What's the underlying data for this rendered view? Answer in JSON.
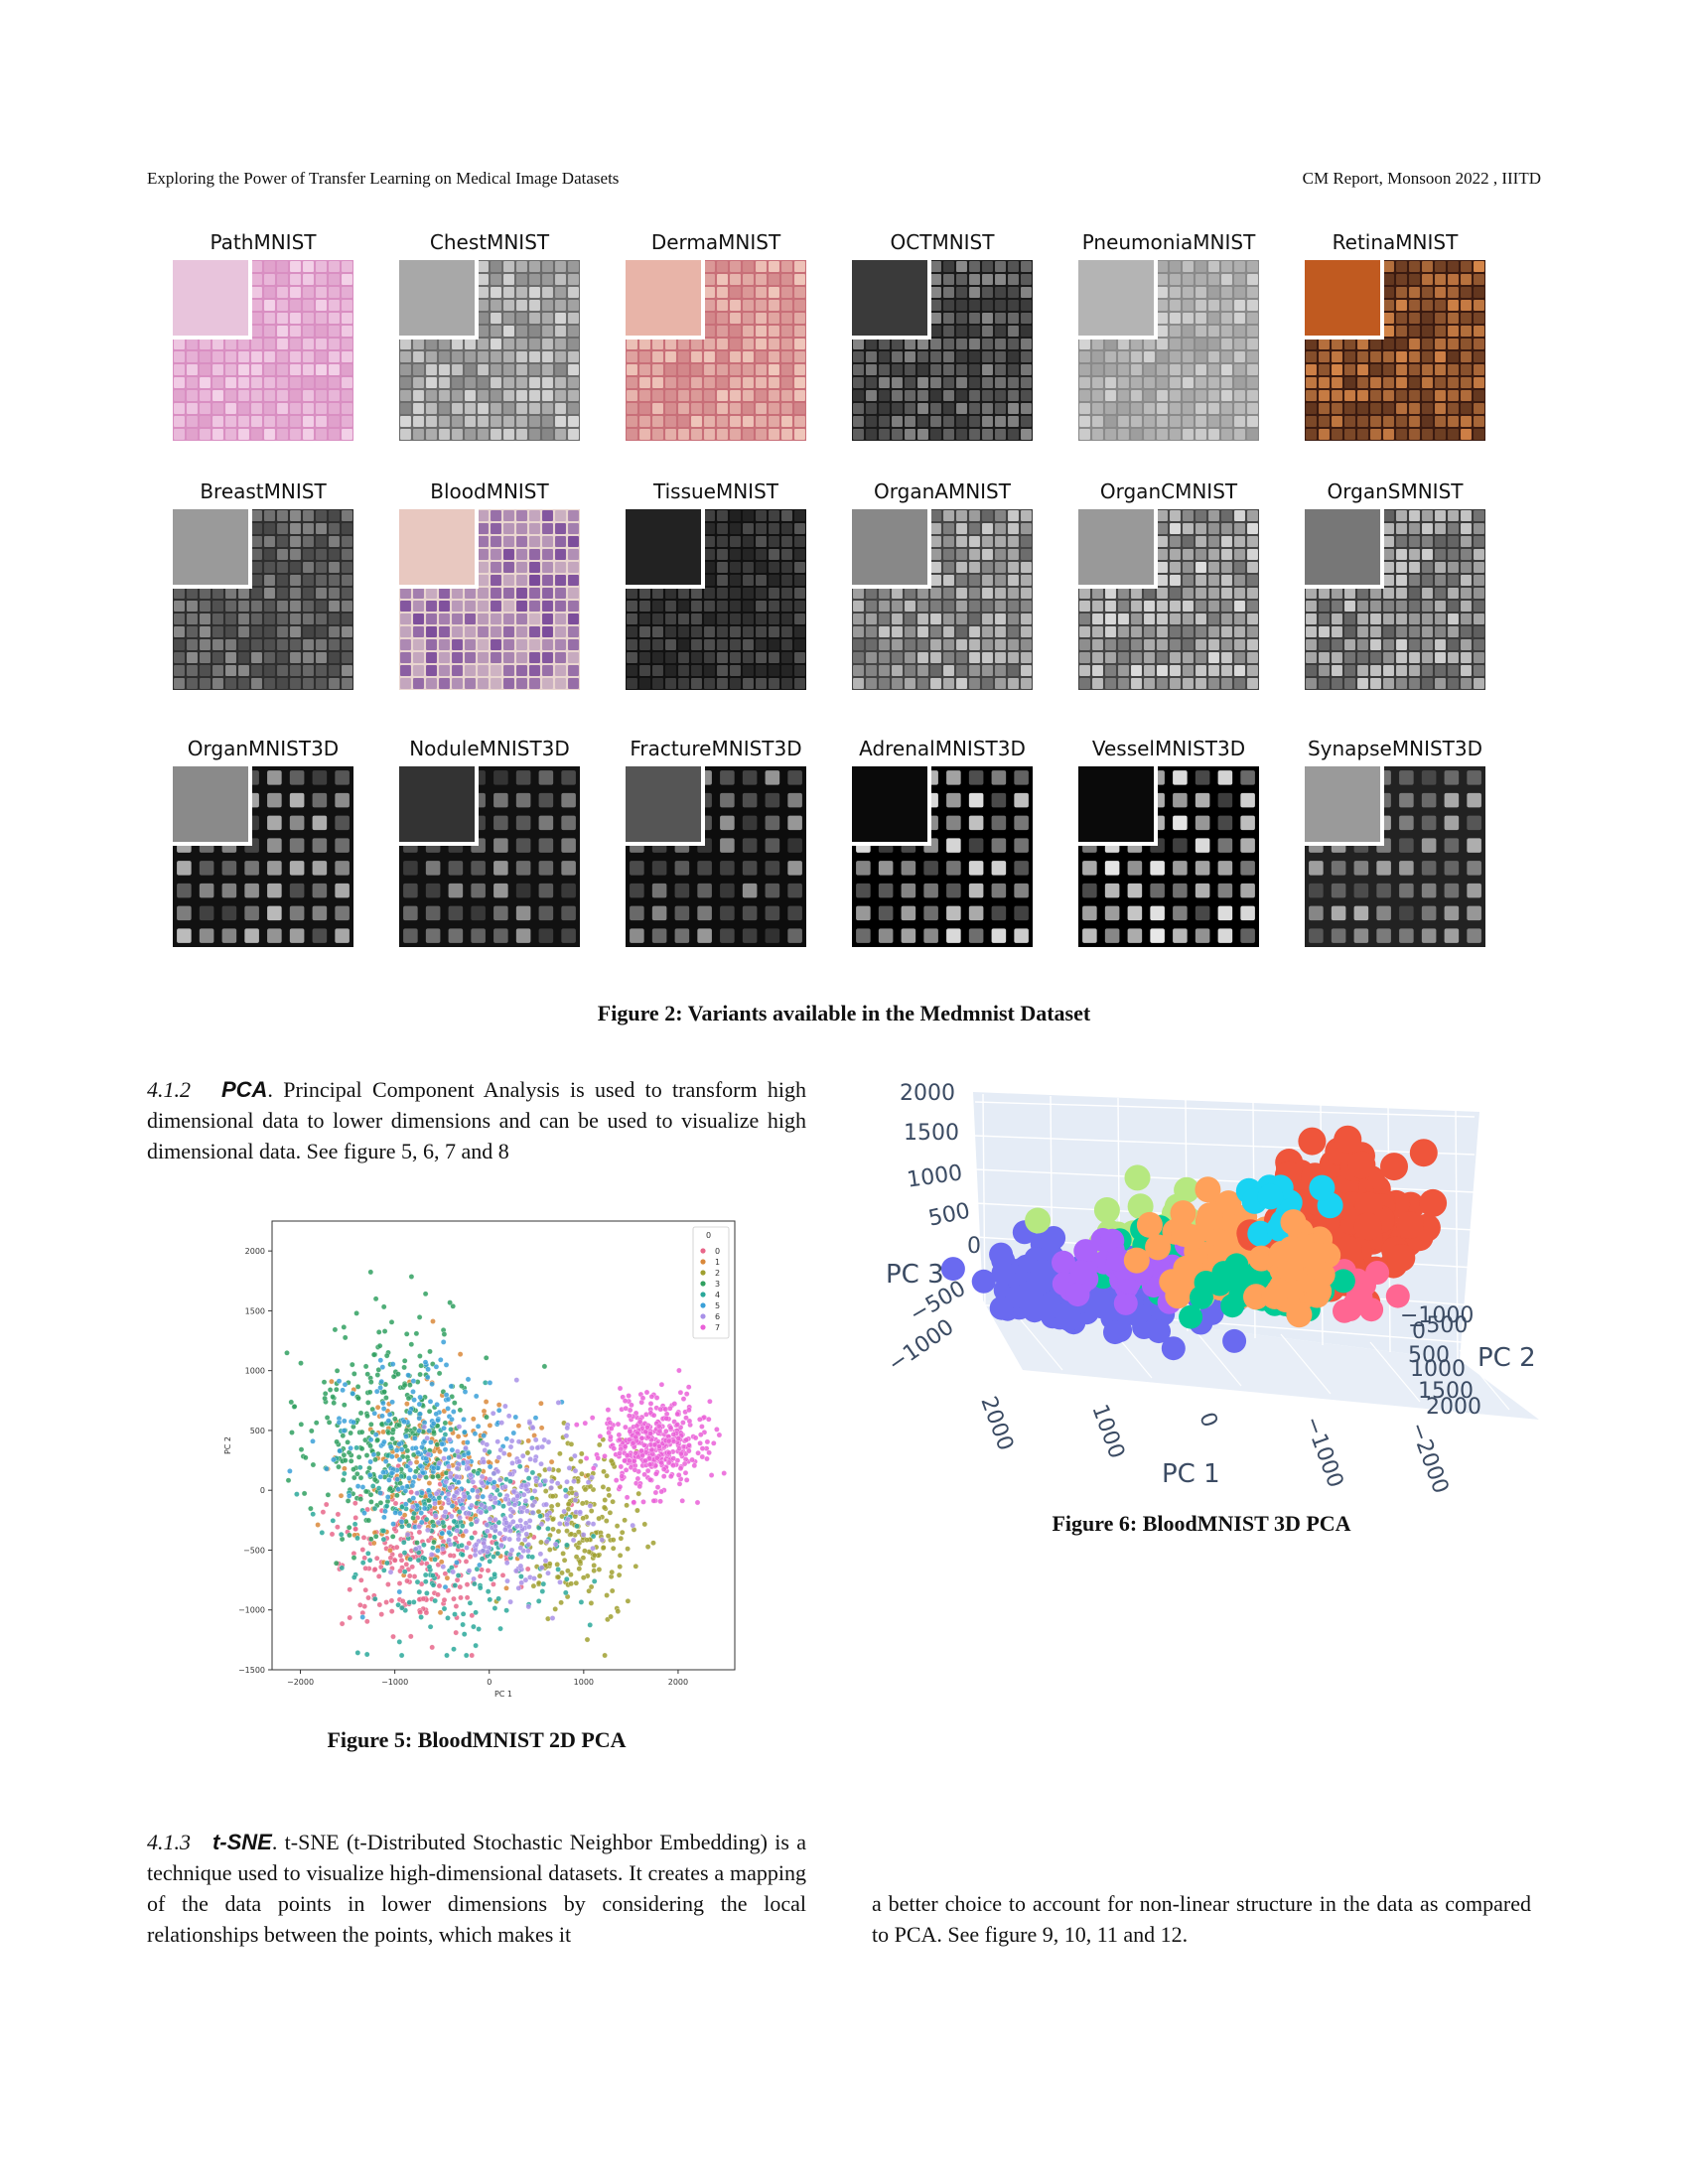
{
  "header": {
    "left": "Exploring the Power of Transfer Learning on Medical Image Datasets",
    "right": "CM Report, Monsoon 2022 , IIITD"
  },
  "figure2": {
    "caption": "Figure 2: Variants available in the Medmnist Dataset",
    "rows": [
      [
        {
          "label": "PathMNIST",
          "bg": "#d98fc2",
          "fg": "#f3d2e8",
          "inset": "#e8c4dc"
        },
        {
          "label": "ChestMNIST",
          "bg": "#6b6b6b",
          "fg": "#d8d8d8",
          "inset": "#a8a8a8"
        },
        {
          "label": "DermaMNIST",
          "bg": "#c86f78",
          "fg": "#f0c8bc",
          "inset": "#e8b4a8"
        },
        {
          "label": "OCTMNIST",
          "bg": "#1a1a1a",
          "fg": "#8a8a8a",
          "inset": "#3a3a3a"
        },
        {
          "label": "PneumoniaMNIST",
          "bg": "#8a8a8a",
          "fg": "#d4d4d4",
          "inset": "#b4b4b4"
        },
        {
          "label": "RetinaMNIST",
          "bg": "#3a1a10",
          "fg": "#d8884a",
          "inset": "#c05a20"
        }
      ],
      [
        {
          "label": "BreastMNIST",
          "bg": "#2e2e2e",
          "fg": "#8c8c8c",
          "inset": "#9a9a9a"
        },
        {
          "label": "BloodMNIST",
          "bg": "#ead6d0",
          "fg": "#7a4a9a",
          "inset": "#e8c8c0"
        },
        {
          "label": "TissueMNIST",
          "bg": "#111111",
          "fg": "#555555",
          "inset": "#222222"
        },
        {
          "label": "OrganAMNIST",
          "bg": "#444444",
          "fg": "#cccccc",
          "inset": "#888888"
        },
        {
          "label": "OrganCMNIST",
          "bg": "#444444",
          "fg": "#dddddd",
          "inset": "#999999"
        },
        {
          "label": "OrganSMNIST",
          "bg": "#3a3a3a",
          "fg": "#cfcfcf",
          "inset": "#777777"
        }
      ],
      [
        {
          "label": "OrganMNIST3D",
          "bg": "#111111",
          "fg": "#bdbdbd",
          "inset": "#8a8a8a"
        },
        {
          "label": "NoduleMNIST3D",
          "bg": "#111111",
          "fg": "#9a9a9a",
          "inset": "#333333"
        },
        {
          "label": "FractureMNIST3D",
          "bg": "#0d0d0d",
          "fg": "#9a9a9a",
          "inset": "#555555"
        },
        {
          "label": "AdrenalMNIST3D",
          "bg": "#000000",
          "fg": "#e0e0e0",
          "inset": "#0a0a0a"
        },
        {
          "label": "VesselMNIST3D",
          "bg": "#000000",
          "fg": "#e8e8e8",
          "inset": "#0a0a0a"
        },
        {
          "label": "SynapseMNIST3D",
          "bg": "#222222",
          "fg": "#b0b0b0",
          "inset": "#9a9a9a"
        }
      ]
    ]
  },
  "section412": {
    "number": "4.1.2",
    "title": "PCA",
    "text": "Principal Component Analysis is used to transform high dimensional data to lower dimensions and can be used to visualize high dimensional data. See figure 5, 6, 7 and 8"
  },
  "section413": {
    "number": "4.1.3",
    "title": "t-SNE",
    "text_left": "t-SNE (t-Distributed Stochastic Neighbor Embedding) is a technique used to visualize high-dimensional datasets. It creates a mapping of the data points in lower dimensions by considering the local relationships between the points, which makes it",
    "text_right": "a better choice to account for non-linear structure in the data as compared to PCA. See figure 9, 10, 11 and 12."
  },
  "figure5": {
    "caption": "Figure 5: BloodMNIST 2D PCA"
  },
  "figure6": {
    "caption": "Figure 6: BloodMNIST 3D PCA"
  },
  "chart_data": [
    {
      "type": "scatter",
      "title": "",
      "xlabel": "PC 1",
      "ylabel": "PC 2",
      "xlim": [
        -2300,
        2600
      ],
      "ylim": [
        -1500,
        2250
      ],
      "xticks": [
        "−2000",
        "−1000",
        "0",
        "1000",
        "2000"
      ],
      "xtick_values": [
        -2000,
        -1000,
        0,
        1000,
        2000
      ],
      "yticks": [
        "−1500",
        "−1000",
        "−500",
        "0",
        "500",
        "1000",
        "1500",
        "2000"
      ],
      "ytick_values": [
        -1500,
        -1000,
        -500,
        0,
        500,
        1000,
        1500,
        2000
      ],
      "legend_title": "0",
      "legend_position": "top-right",
      "series": [
        {
          "name": "0",
          "color": "#e8668a",
          "center": [
            -700,
            -500
          ],
          "spread": [
            450,
            350
          ],
          "count": 260
        },
        {
          "name": "1",
          "color": "#d9883a",
          "center": [
            -500,
            100
          ],
          "spread": [
            500,
            450
          ],
          "count": 220
        },
        {
          "name": "2",
          "color": "#a0a030",
          "center": [
            900,
            -300
          ],
          "spread": [
            350,
            350
          ],
          "count": 230
        },
        {
          "name": "3",
          "color": "#30a060",
          "center": [
            -1100,
            500
          ],
          "spread": [
            450,
            450
          ],
          "count": 320
        },
        {
          "name": "4",
          "color": "#2aa89a",
          "center": [
            -300,
            -400
          ],
          "spread": [
            600,
            400
          ],
          "count": 260
        },
        {
          "name": "5",
          "color": "#3aa0d8",
          "center": [
            -700,
            300
          ],
          "spread": [
            450,
            400
          ],
          "count": 220
        },
        {
          "name": "6",
          "color": "#a890e8",
          "center": [
            100,
            -100
          ],
          "spread": [
            450,
            350
          ],
          "count": 300
        },
        {
          "name": "7",
          "color": "#ea60d8",
          "center": [
            1750,
            400
          ],
          "spread": [
            260,
            200
          ],
          "count": 420
        }
      ]
    },
    {
      "type": "scatter",
      "title": "",
      "xlabel": "PC 1",
      "ylabel": "PC 3",
      "zlabel": "PC 2",
      "x_ticks": [
        "2000",
        "1000",
        "0",
        "−1000",
        "−2000"
      ],
      "y_ticks": [
        "−1000",
        "−500",
        "0",
        "500",
        "1000",
        "1500",
        "2000"
      ],
      "z_ticks": [
        "−1000",
        "−500",
        "0",
        "500",
        "1000",
        "1500",
        "2000"
      ],
      "colors": [
        "#6a6af0",
        "#ef553b",
        "#00cc96",
        "#ab63fa",
        "#ffa15a",
        "#19d3f3",
        "#ff6692",
        "#b6e880"
      ]
    }
  ]
}
